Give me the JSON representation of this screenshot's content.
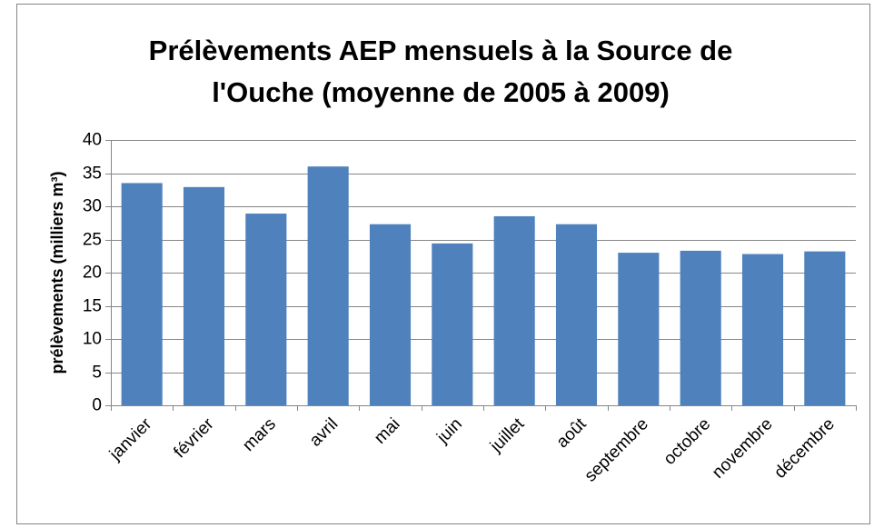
{
  "chart_data": {
    "type": "bar",
    "title": [
      "Prélèvements AEP mensuels à la Source de",
      "l'Ouche (moyenne de 2005 à 2009)"
    ],
    "y_label": "prélèvements (milliers m³)",
    "categories": [
      "janvier",
      "février",
      "mars",
      "avril",
      "mai",
      "juin",
      "juillet",
      "août",
      "septembre",
      "octobre",
      "novembre",
      "décembre"
    ],
    "values": [
      33.5,
      32.9,
      28.9,
      36,
      27.3,
      24.4,
      28.5,
      27.3,
      23,
      23.3,
      22.8,
      23.2
    ],
    "color": "#4f81bd",
    "ylim": [
      0,
      40
    ],
    "yticks": [
      0,
      5,
      10,
      15,
      20,
      25,
      30,
      35,
      40
    ],
    "grid": true
  }
}
